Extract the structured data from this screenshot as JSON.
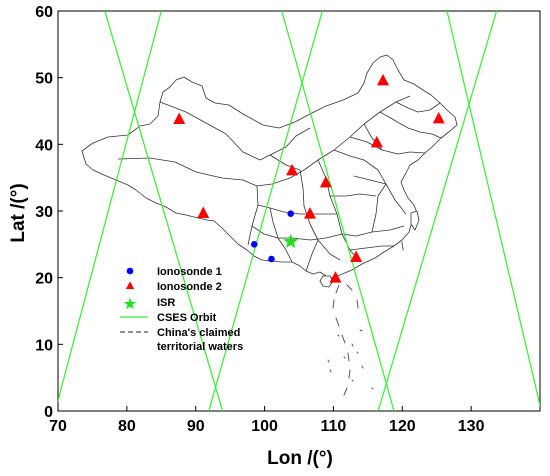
{
  "chart_data": {
    "type": "scatter",
    "xlabel": "Lon /(°)",
    "ylabel": "Lat /(°)",
    "xlim": [
      70,
      140
    ],
    "ylim": [
      0,
      60
    ],
    "xticks": [
      "70",
      "80",
      "90",
      "100",
      "110",
      "120",
      "130"
    ],
    "yticks": [
      "0",
      "10",
      "20",
      "30",
      "40",
      "50",
      "60"
    ],
    "grid": false,
    "legend_position": "lower-left",
    "colors": {
      "ionosonde1": "#0000ff",
      "ionosonde2": "#ff0000",
      "isr": "#22dd22",
      "orbit": "#33ee33",
      "territorial": "#555555",
      "boundary": "#333333"
    },
    "series": [
      {
        "name": "Ionosonde 1",
        "marker": "circle",
        "points": [
          [
            98.5,
            25.0
          ],
          [
            101.0,
            22.8
          ],
          [
            103.8,
            29.6
          ]
        ]
      },
      {
        "name": "Ionosonde 2",
        "marker": "triangle",
        "points": [
          [
            87.6,
            43.8
          ],
          [
            91.1,
            29.7
          ],
          [
            104.0,
            36.1
          ],
          [
            106.6,
            29.6
          ],
          [
            108.9,
            34.3
          ],
          [
            110.3,
            20.0
          ],
          [
            113.3,
            23.1
          ],
          [
            116.3,
            40.3
          ],
          [
            117.2,
            49.6
          ],
          [
            125.3,
            43.9
          ]
        ]
      },
      {
        "name": "ISR",
        "marker": "star",
        "points": [
          [
            103.8,
            25.4
          ]
        ]
      },
      {
        "name": "CSES Orbit",
        "marker": "line",
        "tracks": [
          [
            [
              76.8,
              60
            ],
            [
              93.9,
              0
            ]
          ],
          [
            [
              85.0,
              60
            ],
            [
              69.6,
              0
            ]
          ],
          [
            [
              102.5,
              60
            ],
            [
              118.8,
              0
            ]
          ],
          [
            [
              108.4,
              60
            ],
            [
              91.9,
              0
            ]
          ],
          [
            [
              126.5,
              60
            ],
            [
              140.2,
              0
            ]
          ],
          [
            [
              133.7,
              60
            ],
            [
              116.5,
              0
            ]
          ]
        ]
      },
      {
        "name": "China's claimed territorial waters",
        "marker": "dashed-line"
      }
    ]
  },
  "legend": {
    "items": [
      {
        "label": "Ionosonde 1"
      },
      {
        "label": "Ionosonde 2"
      },
      {
        "label": "ISR"
      },
      {
        "label": "CSES Orbit"
      },
      {
        "label_line1": "China's claimed",
        "label_line2": "territorial waters"
      }
    ]
  }
}
